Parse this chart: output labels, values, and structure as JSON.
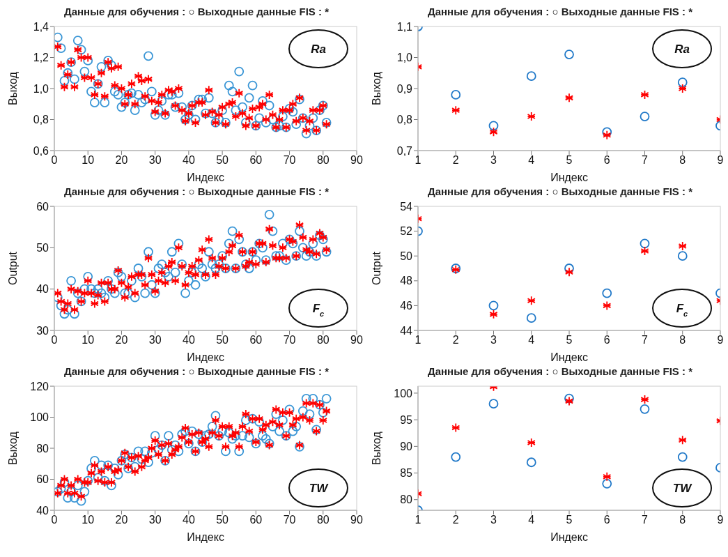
{
  "chart_data": [
    {
      "type": "scatter",
      "title": "Данные для обучения : ○ Выходные данные FIS : *",
      "xlabel": "Индекс",
      "ylabel": "Выход",
      "annotations": [
        "Ra"
      ],
      "x": [
        1,
        2,
        3,
        4,
        5,
        6,
        7,
        8,
        9,
        10,
        11,
        12,
        13,
        14,
        15,
        16,
        17,
        18,
        19,
        20,
        21,
        22,
        23,
        24,
        25,
        26,
        27,
        28,
        29,
        30,
        31,
        32,
        33,
        34,
        35,
        36,
        37,
        38,
        39,
        40,
        41,
        42,
        43,
        44,
        45,
        46,
        47,
        48,
        49,
        50,
        51,
        52,
        53,
        54,
        55,
        56,
        57,
        58,
        59,
        60,
        61,
        62,
        63,
        64,
        65,
        66,
        67,
        68,
        69,
        70,
        71,
        72,
        73,
        74,
        75,
        76,
        77,
        78,
        79,
        80,
        81
      ],
      "series": [
        {
          "color": "#3a96d6",
          "marker": "circle",
          "values": [
            1.33,
            1.26,
            1.05,
            1.1,
            1.17,
            1.06,
            1.31,
            1.25,
            1.11,
            1.18,
            0.98,
            0.91,
            1.03,
            1.14,
            0.91,
            1.18,
            1.15,
            0.98,
            0.96,
            0.88,
            0.91,
            0.96,
            0.97,
            0.86,
            0.96,
            0.91,
            0.93,
            1.21,
            0.98,
            0.83,
            0.86,
            0.92,
            0.83,
            0.96,
            0.96,
            0.88,
            0.97,
            0.88,
            0.8,
            0.83,
            0.89,
            0.8,
            0.93,
            0.93,
            0.84,
            0.94,
            0.84,
            0.78,
            0.8,
            0.86,
            0.78,
            1.02,
            0.98,
            0.86,
            1.11,
            0.88,
            0.78,
            0.94,
            1.02,
            0.76,
            0.81,
            0.92,
            0.78,
            0.89,
            0.8,
            0.75,
            0.76,
            0.82,
            0.75,
            0.87,
            0.85,
            0.77,
            0.93,
            0.81,
            0.71,
            0.76,
            0.81,
            0.73,
            0.86,
            0.89,
            0.78
          ]
        },
        {
          "color": "#ff0000",
          "marker": "cross",
          "values": [
            1.27,
            1.15,
            1.01,
            1.09,
            1.17,
            1.01,
            1.25,
            1.2,
            1.07,
            1.2,
            1.07,
            0.96,
            1.03,
            1.1,
            0.95,
            1.17,
            1.13,
            1.02,
            1.14,
            1.0,
            0.9,
            0.96,
            1.03,
            0.9,
            1.08,
            1.05,
            0.95,
            1.06,
            0.92,
            0.85,
            0.91,
            0.96,
            0.84,
            0.99,
            0.98,
            0.89,
            1.0,
            0.86,
            0.79,
            0.84,
            0.89,
            0.78,
            0.91,
            0.91,
            0.83,
            0.99,
            0.85,
            0.78,
            0.83,
            0.88,
            0.77,
            0.9,
            0.91,
            0.82,
            0.97,
            0.84,
            0.76,
            0.81,
            0.87,
            0.76,
            0.88,
            0.9,
            0.8,
            0.96,
            0.83,
            0.75,
            0.8,
            0.86,
            0.75,
            0.86,
            0.9,
            0.79,
            0.94,
            0.81,
            0.73,
            0.79,
            0.86,
            0.73,
            0.86,
            0.89,
            0.77
          ]
        }
      ],
      "xlim": [
        0,
        90
      ],
      "xticks": [
        0,
        10,
        20,
        30,
        40,
        50,
        60,
        70,
        80,
        90
      ],
      "ylim": [
        0.6,
        1.4
      ],
      "yticks": [
        {
          "value": 0.6,
          "label": "0,6"
        },
        {
          "value": 0.8,
          "label": "0,8"
        },
        {
          "value": 1.0,
          "label": "1,0"
        },
        {
          "value": 1.2,
          "label": "1,2"
        },
        {
          "value": 1.4,
          "label": "1,4"
        }
      ],
      "grid": false,
      "legend": false
    },
    {
      "type": "scatter",
      "title": "Данные для обучения : ○ Выходные данные FIS : *",
      "xlabel": "Индекс",
      "ylabel": "Выход",
      "annotations": [
        "Ra"
      ],
      "x": [
        1,
        2,
        3,
        4,
        5,
        6,
        7,
        8,
        9
      ],
      "series": [
        {
          "color": "#1f78c8",
          "marker": "circle",
          "values": [
            1.1,
            0.88,
            0.78,
            0.94,
            1.01,
            0.76,
            0.81,
            0.92,
            0.78
          ]
        },
        {
          "color": "#ff0000",
          "marker": "cross",
          "values": [
            0.97,
            0.83,
            0.76,
            0.81,
            0.87,
            0.75,
            0.88,
            0.9,
            0.8
          ]
        }
      ],
      "xlim": [
        1,
        9
      ],
      "xticks": [
        1,
        2,
        3,
        4,
        5,
        6,
        7,
        8,
        9
      ],
      "ylim": [
        0.7,
        1.1
      ],
      "yticks": [
        {
          "value": 0.7,
          "label": "0,7"
        },
        {
          "value": 0.8,
          "label": "0,8"
        },
        {
          "value": 0.9,
          "label": "0,9"
        },
        {
          "value": 1.0,
          "label": "1,0"
        },
        {
          "value": 1.1,
          "label": "1,1"
        }
      ],
      "grid": false,
      "legend": false
    },
    {
      "type": "scatter",
      "title": "Данные для обучения : ○ Выходные данные FIS : *",
      "xlabel": "Индекс",
      "ylabel": "Output",
      "annotations": [
        "F$_{c}$"
      ],
      "x": [
        1,
        2,
        3,
        4,
        5,
        6,
        7,
        8,
        9,
        10,
        11,
        12,
        13,
        14,
        15,
        16,
        17,
        18,
        19,
        20,
        21,
        22,
        23,
        24,
        25,
        26,
        27,
        28,
        29,
        30,
        31,
        32,
        33,
        34,
        35,
        36,
        37,
        38,
        39,
        40,
        41,
        42,
        43,
        44,
        45,
        46,
        47,
        48,
        49,
        50,
        51,
        52,
        53,
        54,
        55,
        56,
        57,
        58,
        59,
        60,
        61,
        62,
        63,
        64,
        65,
        66,
        67,
        68,
        69,
        70,
        71,
        72,
        73,
        74,
        75,
        76,
        77,
        78,
        79,
        80,
        81
      ],
      "series": [
        {
          "color": "#3a96d6",
          "marker": "circle",
          "values": [
            38,
            36,
            34,
            35,
            42,
            34,
            39,
            37,
            40,
            43,
            40,
            39,
            40,
            39,
            38,
            42,
            40,
            39,
            44,
            43,
            39,
            39,
            42,
            38,
            45,
            43,
            39,
            49,
            41,
            39,
            45,
            46,
            44,
            43,
            49,
            44,
            51,
            46,
            39,
            42,
            44,
            41,
            46,
            45,
            43,
            49,
            46,
            45,
            46,
            48,
            45,
            51,
            54,
            45,
            52,
            49,
            46,
            45,
            49,
            47,
            51,
            50,
            47,
            58,
            54,
            48,
            48,
            51,
            47,
            52,
            51,
            48,
            54,
            50,
            48,
            49,
            51,
            48,
            53,
            52,
            49
          ]
        },
        {
          "color": "#ff0000",
          "marker": "cross",
          "values": [
            39,
            37,
            35,
            36.5,
            40,
            35,
            39.5,
            37,
            39,
            42,
            39,
            36.5,
            38.5,
            41.5,
            37,
            41.5,
            40,
            40,
            44.5,
            41.5,
            38,
            40.5,
            43,
            39,
            43.5,
            43.5,
            41,
            47.5,
            43.5,
            39.5,
            42,
            44,
            41.5,
            45.5,
            46.5,
            42,
            50,
            45.5,
            41,
            44,
            45.5,
            43.5,
            47,
            49.5,
            43.5,
            52,
            47.5,
            43.5,
            45.5,
            47.5,
            45,
            49,
            50.5,
            45,
            53,
            49,
            45.5,
            46.5,
            49,
            46,
            51,
            51,
            46.5,
            54.5,
            50.5,
            47.5,
            47.5,
            50,
            47.5,
            52,
            51.5,
            48,
            55.5,
            52.5,
            49.5,
            49,
            52,
            48.5,
            53.5,
            52.5,
            49.5
          ]
        }
      ],
      "xlim": [
        0,
        90
      ],
      "xticks": [
        0,
        10,
        20,
        30,
        40,
        50,
        60,
        70,
        80,
        90
      ],
      "ylim": [
        30,
        60
      ],
      "yticks": [
        30,
        40,
        50,
        60
      ],
      "grid": false,
      "legend": false
    },
    {
      "type": "scatter",
      "title": "Данные для обучения : ○ Выходные данные FIS : *",
      "xlabel": "Индекс",
      "ylabel": "Output",
      "annotations": [
        "F$_{c}$"
      ],
      "x": [
        1,
        2,
        3,
        4,
        5,
        6,
        7,
        8,
        9
      ],
      "series": [
        {
          "color": "#1f78c8",
          "marker": "circle",
          "values": [
            52,
            49,
            46,
            45,
            49,
            47,
            51,
            50,
            47
          ]
        },
        {
          "color": "#ff0000",
          "marker": "cross",
          "values": [
            53,
            48.9,
            45.3,
            46.4,
            48.7,
            46,
            50.4,
            50.8,
            46.4
          ]
        }
      ],
      "xlim": [
        1,
        9
      ],
      "xticks": [
        1,
        2,
        3,
        4,
        5,
        6,
        7,
        8,
        9
      ],
      "ylim": [
        44,
        54
      ],
      "yticks": [
        44,
        46,
        48,
        50,
        52,
        54
      ],
      "grid": false,
      "legend": false
    },
    {
      "type": "scatter",
      "title": "Данные для обучения : ○ Выходные данные FIS : *",
      "xlabel": "Индекс",
      "ylabel": "Выход",
      "annotations": [
        "TW"
      ],
      "x": [
        1,
        2,
        3,
        4,
        5,
        6,
        7,
        8,
        9,
        10,
        11,
        12,
        13,
        14,
        15,
        16,
        17,
        18,
        19,
        20,
        21,
        22,
        23,
        24,
        25,
        26,
        27,
        28,
        29,
        30,
        31,
        32,
        33,
        34,
        35,
        36,
        37,
        38,
        39,
        40,
        41,
        42,
        43,
        44,
        45,
        46,
        47,
        48,
        49,
        50,
        51,
        52,
        53,
        54,
        55,
        56,
        57,
        58,
        59,
        60,
        61,
        62,
        63,
        64,
        65,
        66,
        67,
        68,
        69,
        70,
        71,
        72,
        73,
        74,
        75,
        76,
        77,
        78,
        79,
        80,
        81
      ],
      "series": [
        {
          "color": "#3a96d6",
          "marker": "circle",
          "values": [
            52,
            54,
            58,
            48,
            52,
            48,
            56,
            46,
            52,
            59,
            67,
            72,
            61,
            69,
            59,
            69,
            56,
            67,
            63,
            72,
            76,
            67,
            74,
            68,
            78,
            73,
            78,
            71,
            77,
            88,
            79,
            82,
            72,
            88,
            79,
            82,
            78,
            89,
            91,
            83,
            91,
            78,
            89,
            84,
            88,
            89,
            94,
            101,
            88,
            91,
            78,
            90,
            86,
            88,
            78,
            88,
            98,
            87,
            99,
            83,
            97,
            88,
            86,
            83,
            94,
            102,
            91,
            98,
            88,
            105,
            91,
            94,
            81,
            104,
            112,
            102,
            112,
            92,
            108,
            103,
            112
          ]
        },
        {
          "color": "#ff0000",
          "marker": "cross",
          "values": [
            51,
            56,
            60,
            51,
            56,
            51,
            60,
            49,
            58,
            58,
            64,
            69,
            59,
            65,
            58,
            68,
            58,
            65,
            66,
            72,
            77,
            68,
            74,
            65,
            75,
            68,
            72,
            74,
            80,
            85,
            76,
            82,
            72,
            83,
            76,
            79,
            81,
            87,
            93,
            84,
            89,
            78,
            90,
            84,
            86,
            81,
            90,
            98,
            88,
            94,
            81,
            94,
            88,
            90,
            81,
            94,
            102,
            91,
            99,
            84,
            99,
            92,
            95,
            82,
            97,
            105,
            95,
            103,
            88,
            103,
            95,
            99,
            82,
            100,
            109,
            98,
            109,
            91,
            108,
            98,
            104
          ]
        }
      ],
      "xlim": [
        0,
        90
      ],
      "xticks": [
        0,
        10,
        20,
        30,
        40,
        50,
        60,
        70,
        80,
        90
      ],
      "ylim": [
        40,
        120
      ],
      "yticks": [
        40,
        60,
        80,
        100,
        120
      ],
      "grid": false,
      "legend": false
    },
    {
      "type": "scatter",
      "title": "Данные для обучения : ○ Выходные данные FIS : *",
      "xlabel": "Индекс",
      "ylabel": "Выход",
      "annotations": [
        "TW"
      ],
      "x": [
        1,
        2,
        3,
        4,
        5,
        6,
        7,
        8,
        9
      ],
      "series": [
        {
          "color": "#1f78c8",
          "marker": "circle",
          "values": [
            78,
            88,
            98,
            87,
            99,
            83,
            97,
            88,
            86
          ]
        },
        {
          "color": "#ff0000",
          "marker": "cross",
          "values": [
            81.1,
            93.5,
            101.2,
            90.7,
            98.5,
            84.3,
            98.8,
            91.2,
            94.8
          ]
        }
      ],
      "xlim": [
        1,
        9
      ],
      "xticks": [
        1,
        2,
        3,
        4,
        5,
        6,
        7,
        8,
        9
      ],
      "ylim": [
        78,
        101.3
      ],
      "yticks": [
        80,
        85,
        90,
        95,
        100
      ],
      "grid": false,
      "legend": false
    }
  ]
}
